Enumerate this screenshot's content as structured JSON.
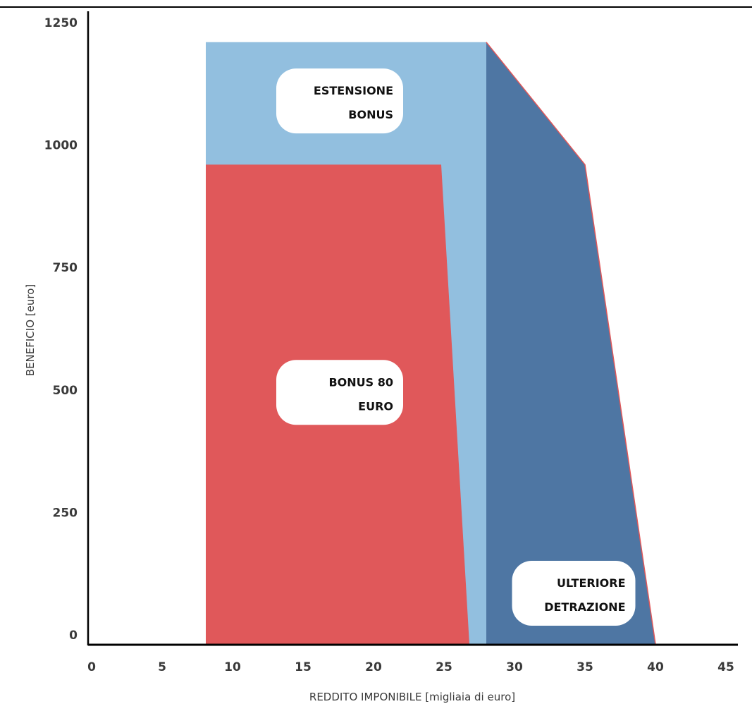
{
  "chart_data": {
    "type": "area",
    "xlabel": "REDDITO IMPONIBILE [migliaia di euro]",
    "ylabel": "BENEFICIO [euro]",
    "xlim": [
      0,
      45
    ],
    "ylim": [
      0,
      1250
    ],
    "xticks": [
      0,
      5,
      10,
      15,
      20,
      25,
      30,
      35,
      40,
      45
    ],
    "yticks": [
      0,
      250,
      500,
      750,
      1000,
      1250
    ],
    "grid": false,
    "legend": "none",
    "series": [
      {
        "name": "ESTENSIONE BONUS",
        "color": "#92bfdf",
        "points": [
          [
            8.1,
            0
          ],
          [
            8.1,
            1210
          ],
          [
            28.0,
            1210
          ],
          [
            28.0,
            0
          ]
        ]
      },
      {
        "name": "BONUS 80 EURO",
        "color": "#e0585a",
        "points": [
          [
            8.1,
            0
          ],
          [
            8.1,
            960
          ],
          [
            24.8,
            960
          ],
          [
            26.8,
            0
          ]
        ]
      },
      {
        "name": "ULTERIORE DETRAZIONE",
        "color": "#4e76a3",
        "points": [
          [
            28.0,
            0
          ],
          [
            28.0,
            1210
          ],
          [
            35.0,
            960
          ],
          [
            40.0,
            0
          ]
        ]
      }
    ],
    "annotations": [
      {
        "lines": [
          "ESTENSIONE",
          "BONUS"
        ],
        "x": 17.6,
        "y": 1090
      },
      {
        "lines": [
          "BONUS 80",
          "EURO"
        ],
        "x": 17.6,
        "y": 495
      },
      {
        "lines": [
          "ULTERIORE",
          "DETRAZIONE"
        ],
        "x": 34.2,
        "y": 85
      }
    ]
  }
}
